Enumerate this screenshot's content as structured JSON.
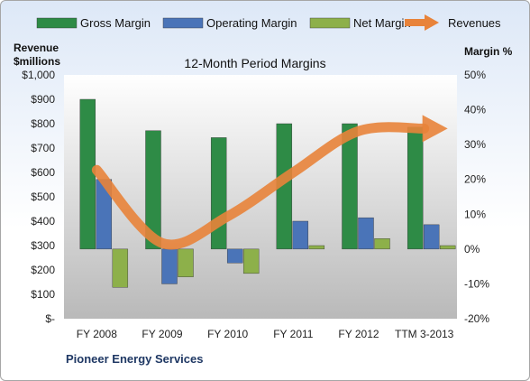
{
  "chart_data": {
    "type": "bar",
    "title": "12-Month Period Margins",
    "footer": "Pioneer Energy Services",
    "categories": [
      "FY 2008",
      "FY 2009",
      "FY 2010",
      "FY 2011",
      "FY 2012",
      "TTM 3-2013"
    ],
    "left_axis": {
      "label_line1": "Revenue",
      "label_line2": "$millions",
      "ylim": [
        0,
        1000
      ],
      "ticks": [
        0,
        100,
        200,
        300,
        400,
        500,
        600,
        700,
        800,
        900,
        1000
      ],
      "tick_labels": [
        "$-",
        "$100",
        "$200",
        "$300",
        "$400",
        "$500",
        "$600",
        "$700",
        "$800",
        "$900",
        "$1,000"
      ]
    },
    "right_axis": {
      "label": "Margin %",
      "ylim": [
        -20,
        50
      ],
      "ticks": [
        -20,
        -10,
        0,
        10,
        20,
        30,
        40,
        50
      ],
      "tick_labels": [
        "-20%",
        "-10%",
        "0%",
        "10%",
        "20%",
        "30%",
        "40%",
        "50%"
      ]
    },
    "series": [
      {
        "name": "Gross Margin",
        "type": "bar",
        "axis": "right",
        "color": "#2e8b46",
        "values": [
          43,
          34,
          32,
          36,
          36,
          35
        ]
      },
      {
        "name": "Operating Margin",
        "type": "bar",
        "axis": "right",
        "color": "#4a74b8",
        "values": [
          20,
          -10,
          -4,
          8,
          9,
          7
        ]
      },
      {
        "name": "Net Margin",
        "type": "bar",
        "axis": "right",
        "color": "#8db04a",
        "values": [
          -11,
          -8,
          -7,
          1,
          3,
          1
        ]
      },
      {
        "name": "Revenues",
        "type": "line",
        "axis": "left",
        "color": "#e8833a",
        "values": [
          610,
          310,
          420,
          600,
          770,
          780
        ]
      }
    ],
    "grid": false,
    "legend": "top"
  }
}
